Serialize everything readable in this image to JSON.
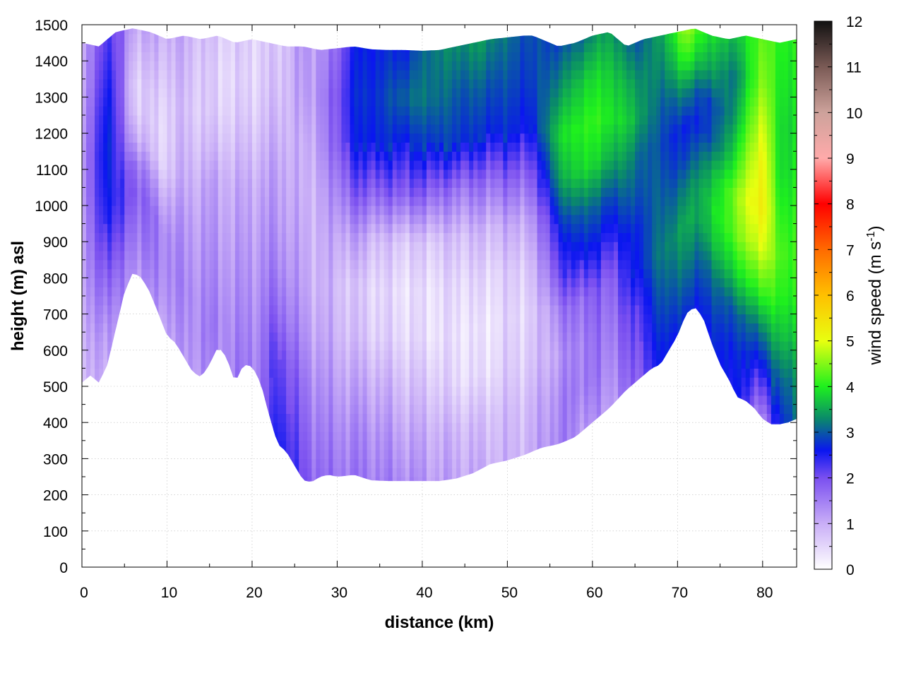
{
  "chart_data": {
    "type": "heatmap",
    "title": "",
    "xlabel": "distance (km)",
    "ylabel": "height (m) asl",
    "xlim": [
      0,
      84
    ],
    "ylim": [
      0,
      1500
    ],
    "xticks": [
      0,
      10,
      20,
      30,
      40,
      50,
      60,
      70,
      80
    ],
    "yticks": [
      0,
      100,
      200,
      300,
      400,
      500,
      600,
      700,
      800,
      900,
      1000,
      1100,
      1200,
      1300,
      1400,
      1500
    ],
    "grid": true,
    "colorbar": {
      "label": "wind speed (m s",
      "label_superscript": "-1",
      "label_suffix": ")",
      "range": [
        0,
        12
      ],
      "ticks": [
        0,
        1,
        2,
        3,
        4,
        5,
        6,
        7,
        8,
        9,
        10,
        11,
        12
      ],
      "palette": [
        {
          "v": 0,
          "color": "#ffffff"
        },
        {
          "v": 1,
          "color": "#c9aef7"
        },
        {
          "v": 2,
          "color": "#7a4ff0"
        },
        {
          "v": 2.6,
          "color": "#0a16f0"
        },
        {
          "v": 3.3,
          "color": "#0a8a6a"
        },
        {
          "v": 4,
          "color": "#1ef01e"
        },
        {
          "v": 5,
          "color": "#e8ff10"
        },
        {
          "v": 6,
          "color": "#ffc000"
        },
        {
          "v": 7,
          "color": "#ff6a00"
        },
        {
          "v": 8,
          "color": "#ff0000"
        },
        {
          "v": 9,
          "color": "#ffaaaa"
        },
        {
          "v": 10,
          "color": "#cda29b"
        },
        {
          "v": 11,
          "color": "#7a5a55"
        },
        {
          "v": 12,
          "color": "#111111"
        }
      ]
    },
    "terrain": {
      "x": [
        0,
        1,
        2,
        3,
        4,
        5,
        6,
        7,
        8,
        9,
        10,
        11,
        12,
        13,
        14,
        15,
        16,
        17,
        18,
        19,
        20,
        21,
        22,
        23,
        24,
        25,
        26,
        27,
        28,
        29,
        30,
        32,
        34,
        36,
        38,
        40,
        42,
        44,
        46,
        48,
        50,
        52,
        54,
        56,
        58,
        60,
        62,
        64,
        65,
        66,
        67,
        68,
        69,
        70,
        71,
        72,
        73,
        74,
        75,
        76,
        77,
        78,
        79,
        80,
        81,
        82,
        83,
        84
      ],
      "y": [
        510,
        530,
        510,
        560,
        660,
        760,
        815,
        800,
        760,
        700,
        640,
        620,
        580,
        540,
        525,
        560,
        610,
        580,
        510,
        560,
        555,
        510,
        420,
        340,
        320,
        280,
        240,
        235,
        250,
        255,
        250,
        255,
        240,
        238,
        238,
        238,
        238,
        245,
        260,
        285,
        295,
        310,
        330,
        340,
        360,
        400,
        440,
        490,
        510,
        530,
        550,
        560,
        600,
        640,
        700,
        720,
        690,
        620,
        560,
        520,
        470,
        460,
        440,
        410,
        395,
        395,
        400,
        410
      ]
    },
    "top": {
      "x": [
        0,
        2,
        4,
        6,
        8,
        10,
        12,
        14,
        16,
        18,
        20,
        22,
        24,
        26,
        28,
        30,
        32,
        34,
        36,
        38,
        40,
        42,
        44,
        46,
        48,
        50,
        52,
        53,
        54,
        56,
        58,
        60,
        62,
        64,
        66,
        68,
        70,
        72,
        74,
        76,
        78,
        80,
        82,
        84
      ],
      "y": [
        1450,
        1440,
        1480,
        1490,
        1480,
        1460,
        1470,
        1460,
        1470,
        1450,
        1460,
        1450,
        1440,
        1440,
        1430,
        1435,
        1440,
        1432,
        1430,
        1430,
        1428,
        1430,
        1440,
        1450,
        1460,
        1465,
        1470,
        1470,
        1460,
        1440,
        1450,
        1470,
        1480,
        1440,
        1460,
        1470,
        1480,
        1490,
        1470,
        1460,
        1470,
        1460,
        1450,
        1460
      ]
    },
    "columns": [
      {
        "x": 0,
        "speeds": [
          0.7,
          0.8,
          0.9,
          1.0,
          1.0,
          1.1,
          1.1,
          1.0,
          0.9,
          0.9
        ]
      },
      {
        "x": 3,
        "speeds": [
          1.2,
          1.4,
          1.8,
          2.2,
          2.6,
          2.8,
          2.9,
          2.8,
          2.6,
          2.4
        ]
      },
      {
        "x": 6,
        "speeds": [
          1.4,
          1.6,
          1.8,
          2.0,
          1.8,
          1.2,
          0.8,
          0.7,
          0.9,
          1.1
        ]
      },
      {
        "x": 9,
        "speeds": [
          1.2,
          1.4,
          1.5,
          1.5,
          1.1,
          0.6,
          0.5,
          0.6,
          0.8,
          1.0
        ]
      },
      {
        "x": 12,
        "speeds": [
          1.2,
          1.3,
          1.4,
          1.3,
          1.2,
          1.0,
          0.9,
          0.8,
          0.9,
          1.0
        ]
      },
      {
        "x": 15,
        "speeds": [
          1.4,
          1.5,
          1.4,
          1.3,
          1.2,
          1.1,
          0.8,
          0.6,
          0.6,
          0.7
        ]
      },
      {
        "x": 18,
        "speeds": [
          1.5,
          1.4,
          1.3,
          1.2,
          1.1,
          1.0,
          0.8,
          0.6,
          0.5,
          0.6
        ]
      },
      {
        "x": 21,
        "speeds": [
          1.6,
          1.5,
          1.4,
          1.3,
          1.2,
          1.1,
          0.9,
          0.7,
          0.6,
          0.6
        ]
      },
      {
        "x": 23,
        "speeds": [
          2.6,
          2.4,
          2.2,
          1.8,
          1.5,
          1.3,
          1.2,
          1.0,
          0.8,
          0.7
        ]
      },
      {
        "x": 26,
        "speeds": [
          2.0,
          1.8,
          1.6,
          1.3,
          1.1,
          1.0,
          0.9,
          0.9,
          1.1,
          1.2
        ]
      },
      {
        "x": 29,
        "speeds": [
          1.6,
          1.4,
          1.2,
          1.0,
          0.9,
          1.0,
          1.2,
          1.5,
          1.6,
          1.4
        ]
      },
      {
        "x": 32,
        "speeds": [
          1.6,
          1.4,
          1.1,
          0.8,
          0.7,
          1.2,
          2.0,
          2.6,
          2.7,
          2.6
        ]
      },
      {
        "x": 35,
        "speeds": [
          1.5,
          1.3,
          1.0,
          0.6,
          0.5,
          0.8,
          1.8,
          2.7,
          2.8,
          2.7
        ]
      },
      {
        "x": 38,
        "speeds": [
          1.4,
          1.1,
          0.8,
          0.5,
          0.4,
          0.7,
          1.9,
          2.6,
          3.1,
          2.7
        ]
      },
      {
        "x": 41,
        "speeds": [
          1.2,
          1.0,
          0.7,
          0.4,
          0.4,
          0.7,
          1.8,
          2.8,
          3.2,
          3.2
        ]
      },
      {
        "x": 44,
        "speeds": [
          1.1,
          0.9,
          0.5,
          0.4,
          0.5,
          0.8,
          1.6,
          2.8,
          3.0,
          3.3
        ]
      },
      {
        "x": 47,
        "speeds": [
          1.0,
          0.8,
          0.4,
          0.3,
          0.5,
          0.9,
          1.7,
          2.7,
          3.0,
          3.4
        ]
      },
      {
        "x": 50,
        "speeds": [
          0.9,
          0.8,
          0.6,
          0.5,
          0.6,
          1.0,
          1.8,
          2.7,
          2.9,
          3.1
        ]
      },
      {
        "x": 53,
        "speeds": [
          1.0,
          0.9,
          0.7,
          0.6,
          0.8,
          1.2,
          1.9,
          2.6,
          2.8,
          2.9
        ]
      },
      {
        "x": 56,
        "speeds": [
          1.5,
          1.4,
          1.2,
          1.5,
          2.2,
          2.7,
          3.4,
          3.8,
          3.3,
          2.9
        ]
      },
      {
        "x": 59,
        "speeds": [
          1.3,
          1.6,
          1.6,
          1.8,
          2.6,
          3.1,
          3.9,
          4.1,
          3.8,
          3.2
        ]
      },
      {
        "x": 62,
        "speeds": [
          1.2,
          1.4,
          1.6,
          1.8,
          2.4,
          2.9,
          3.6,
          4.0,
          3.8,
          3.5
        ]
      },
      {
        "x": 65,
        "speeds": [
          1.8,
          2.0,
          2.2,
          2.6,
          2.7,
          3.0,
          3.2,
          3.6,
          3.4,
          3.0
        ]
      },
      {
        "x": 68,
        "speeds": [
          2.6,
          2.8,
          3.0,
          3.2,
          3.1,
          3.0,
          2.9,
          3.0,
          3.2,
          3.4
        ]
      },
      {
        "x": 71,
        "speeds": [
          2.7,
          3.0,
          3.3,
          3.5,
          3.2,
          2.8,
          2.6,
          3.2,
          4.0,
          4.6
        ]
      },
      {
        "x": 74,
        "speeds": [
          2.6,
          2.8,
          3.1,
          3.6,
          3.8,
          3.5,
          2.9,
          2.8,
          3.4,
          3.8
        ]
      },
      {
        "x": 77,
        "speeds": [
          2.6,
          2.7,
          3.0,
          3.8,
          4.4,
          4.6,
          4.0,
          3.5,
          3.2,
          3.6
        ]
      },
      {
        "x": 80,
        "speeds": [
          1.4,
          2.4,
          3.2,
          4.2,
          5.0,
          5.4,
          5.3,
          5.0,
          4.6,
          4.4
        ]
      },
      {
        "x": 82,
        "speeds": [
          2.6,
          3.0,
          3.6,
          4.0,
          4.2,
          4.0,
          3.8,
          3.8,
          3.9,
          4.0
        ]
      },
      {
        "x": 84,
        "speeds": [
          3.2,
          3.4,
          3.8,
          4.1,
          4.2,
          4.1,
          4.0,
          3.9,
          4.0,
          4.1
        ]
      }
    ]
  }
}
